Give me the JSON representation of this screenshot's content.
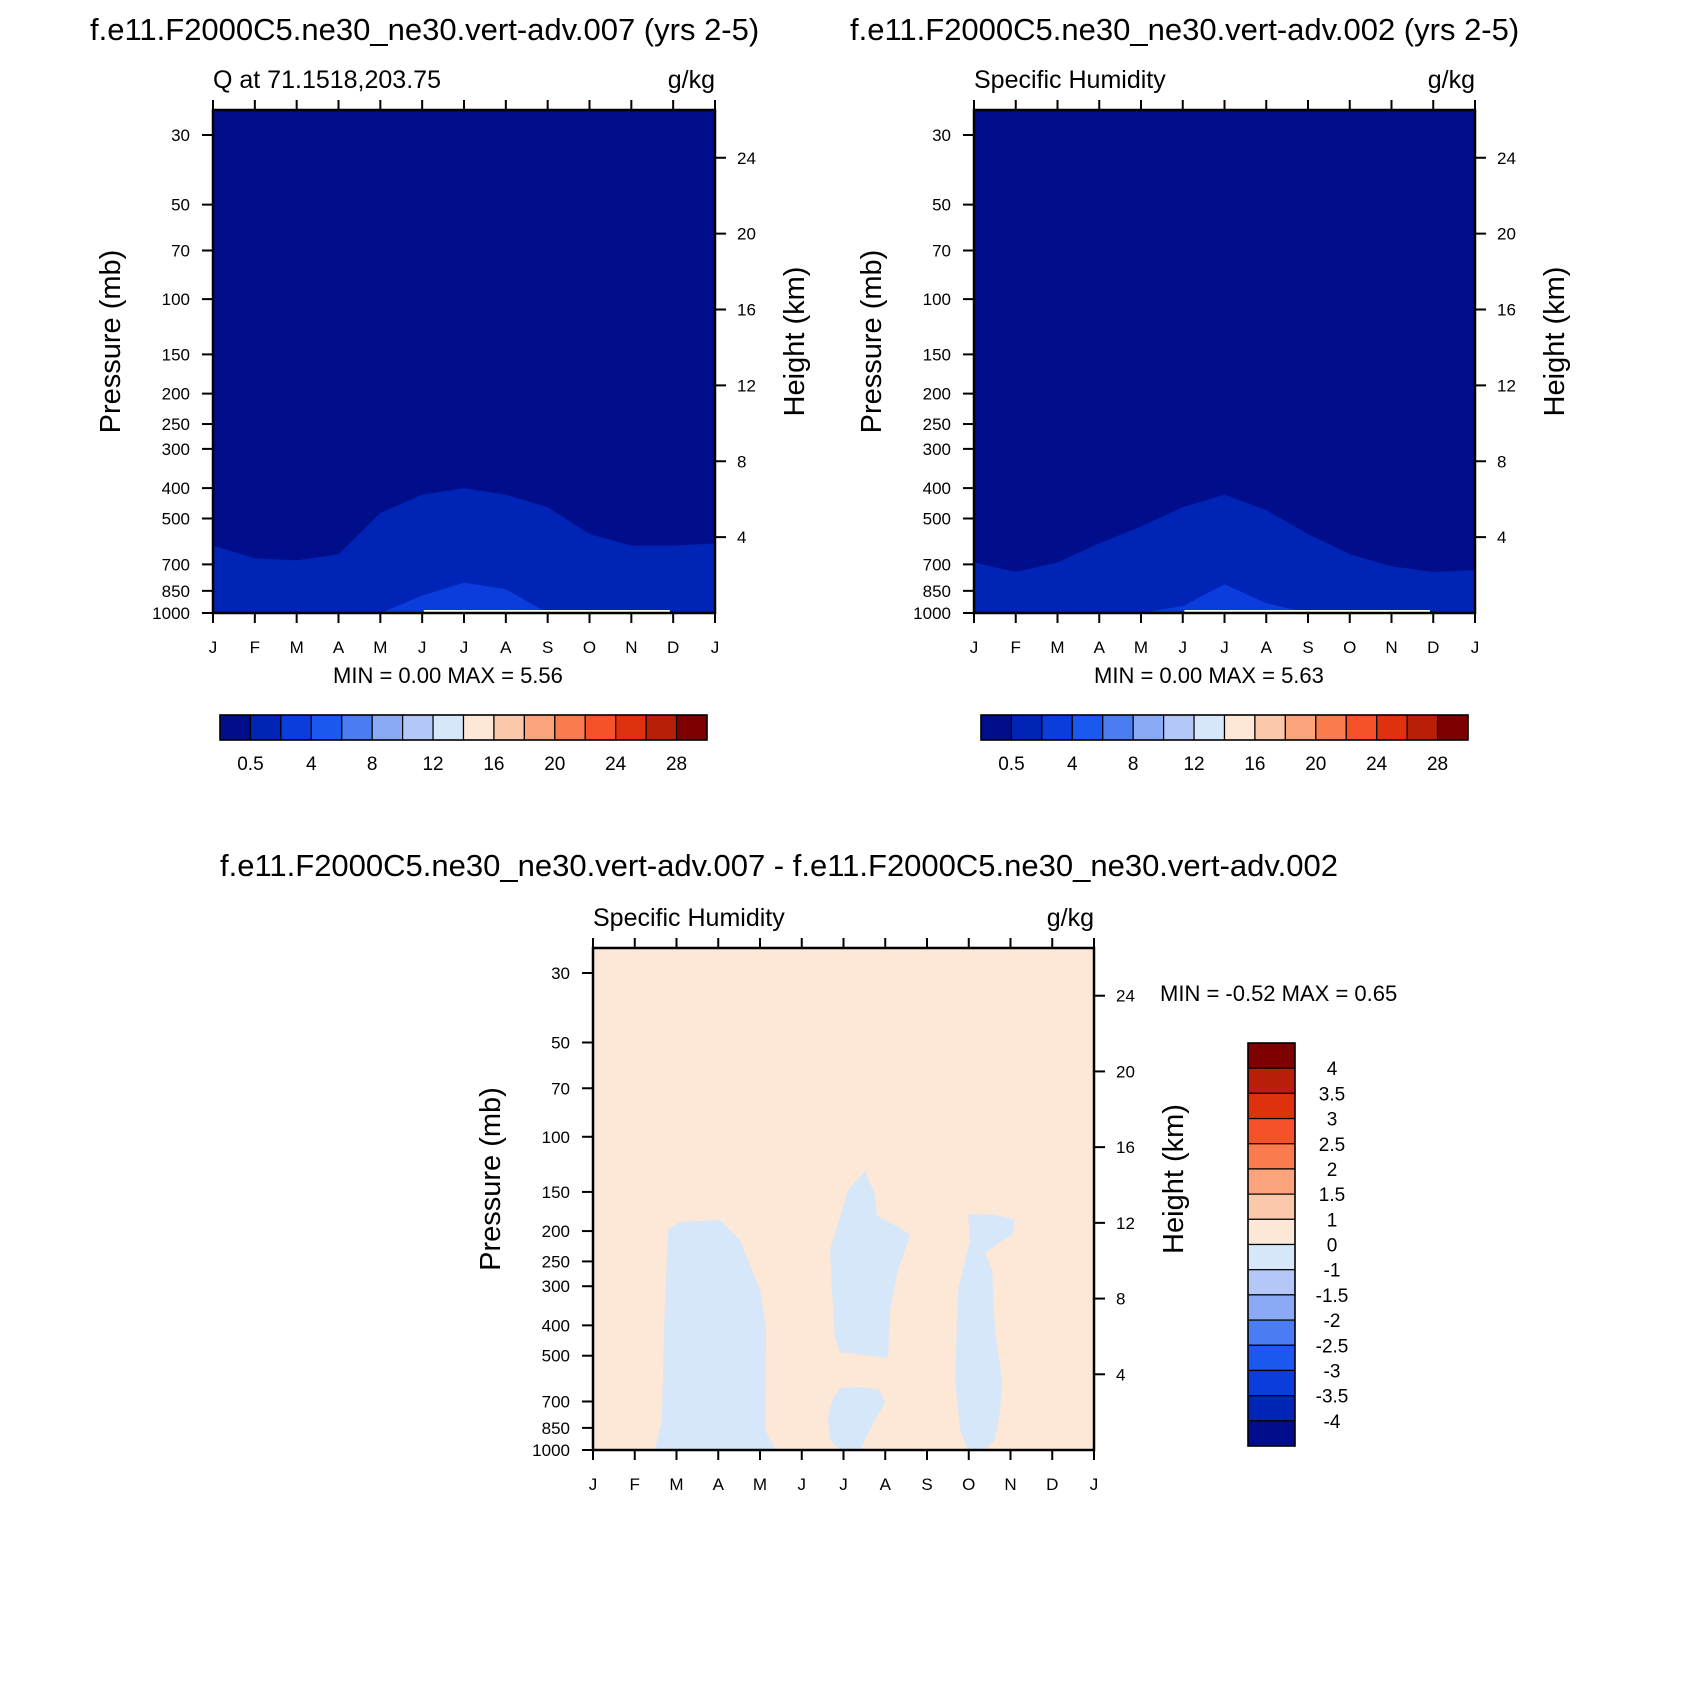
{
  "chart_data": [
    {
      "type": "heatmap",
      "title": "f.e11.F2000C5.ne30_ne30.vert-adv.007 (yrs 2-5)",
      "left_label": "Q at 71.1518,203.75",
      "units": "g/kg",
      "ylabel": "Pressure (mb)",
      "y2label": "Height (km)",
      "x_ticks": [
        "J",
        "F",
        "M",
        "A",
        "M",
        "J",
        "J",
        "A",
        "S",
        "O",
        "N",
        "D",
        "J"
      ],
      "y_ticks": [
        30,
        50,
        70,
        100,
        150,
        200,
        250,
        300,
        400,
        500,
        700,
        850,
        1000
      ],
      "y2_ticks": [
        24,
        20,
        16,
        12,
        8,
        4
      ],
      "stats": "MIN =   0.00 MAX =   5.56",
      "colorbar_labels": [
        "0.5",
        "4",
        "8",
        "12",
        "16",
        "20",
        "24",
        "28"
      ],
      "colorbar_colors": [
        "#000e8c",
        "#0024b5",
        "#0a3ddb",
        "#1a58f0",
        "#4a7cf4",
        "#8aaaf5",
        "#b4c8f7",
        "#d6e7fa",
        "#fde7d6",
        "#fcc8ac",
        "#fba47b",
        "#f97b4e",
        "#f5522a",
        "#e0310f",
        "#b81e08",
        "#7f0000"
      ],
      "contour_levels": [
        0.5,
        1,
        2,
        3
      ],
      "contour_fills": [
        "#000e8c",
        "#0024b5",
        "#0a3ddb",
        "#1a58f0"
      ],
      "bands": [
        {
          "level": 0.5,
          "top": [
            610,
            670,
            680,
            650,
            480,
            420,
            400,
            420,
            460,
            560,
            610,
            610,
            600
          ]
        },
        {
          "level": 1,
          "top": [
            1001,
            1001,
            1001,
            1001,
            900,
            690,
            620,
            650,
            720,
            1001,
            1001,
            1001,
            1001
          ]
        },
        {
          "level": 2,
          "top": [
            1001,
            1001,
            1001,
            1001,
            1001,
            880,
            800,
            840,
            1001,
            1001,
            1001,
            1001,
            1001
          ]
        },
        {
          "level": 3,
          "top": [
            1001,
            1001,
            1001,
            1001,
            1001,
            1001,
            990,
            1001,
            1001,
            1001,
            1001,
            1001,
            1001
          ]
        }
      ]
    },
    {
      "type": "heatmap",
      "title": "f.e11.F2000C5.ne30_ne30.vert-adv.002 (yrs 2-5)",
      "left_label": "Specific Humidity",
      "units": "g/kg",
      "ylabel": "Pressure (mb)",
      "y2label": "Height (km)",
      "x_ticks": [
        "J",
        "F",
        "M",
        "A",
        "M",
        "J",
        "J",
        "A",
        "S",
        "O",
        "N",
        "D",
        "J"
      ],
      "y_ticks": [
        30,
        50,
        70,
        100,
        150,
        200,
        250,
        300,
        400,
        500,
        700,
        850,
        1000
      ],
      "y2_ticks": [
        24,
        20,
        16,
        12,
        8,
        4
      ],
      "stats": "MIN =   0.00 MAX =   5.63",
      "colorbar_labels": [
        "0.5",
        "4",
        "8",
        "12",
        "16",
        "20",
        "24",
        "28"
      ],
      "colorbar_colors": [
        "#000e8c",
        "#0024b5",
        "#0a3ddb",
        "#1a58f0",
        "#4a7cf4",
        "#8aaaf5",
        "#b4c8f7",
        "#d6e7fa",
        "#fde7d6",
        "#fcc8ac",
        "#fba47b",
        "#f97b4e",
        "#f5522a",
        "#e0310f",
        "#b81e08",
        "#7f0000"
      ],
      "contour_levels": [
        0.5,
        1,
        2,
        3
      ],
      "contour_fills": [
        "#000e8c",
        "#0024b5",
        "#0a3ddb",
        "#1a58f0"
      ],
      "bands": [
        {
          "level": 0.5,
          "top": [
            690,
            740,
            690,
            600,
            530,
            460,
            420,
            470,
            560,
            650,
            710,
            740,
            730
          ]
        },
        {
          "level": 1,
          "top": [
            1001,
            1001,
            1001,
            1001,
            920,
            730,
            630,
            680,
            850,
            1001,
            1001,
            1001,
            1001
          ]
        },
        {
          "level": 2,
          "top": [
            1001,
            1001,
            1001,
            1001,
            1001,
            950,
            810,
            930,
            1001,
            1001,
            1001,
            1001,
            1001
          ]
        },
        {
          "level": 3,
          "top": [
            1001,
            1001,
            1001,
            1001,
            1001,
            1001,
            1001,
            1001,
            1001,
            1001,
            1001,
            1001,
            1001
          ]
        }
      ]
    },
    {
      "type": "heatmap",
      "title": "f.e11.F2000C5.ne30_ne30.vert-adv.007 - f.e11.F2000C5.ne30_ne30.vert-adv.002",
      "left_label": "Specific Humidity",
      "units": "g/kg",
      "ylabel": "Pressure (mb)",
      "y2label": "Height (km)",
      "x_ticks": [
        "J",
        "F",
        "M",
        "A",
        "M",
        "J",
        "J",
        "A",
        "S",
        "O",
        "N",
        "D",
        "J"
      ],
      "y_ticks": [
        30,
        50,
        70,
        100,
        150,
        200,
        250,
        300,
        400,
        500,
        700,
        850,
        1000
      ],
      "y2_ticks": [
        24,
        20,
        16,
        12,
        8,
        4
      ],
      "stats": "MIN =  -0.52 MAX =   0.65",
      "colorbar_labels": [
        "4",
        "3.5",
        "3",
        "2.5",
        "2",
        "1.5",
        "1",
        "0",
        "-1",
        "-1.5",
        "-2",
        "-2.5",
        "-3",
        "-3.5",
        "-4"
      ],
      "colorbar_colors": [
        "#7f0000",
        "#b81e08",
        "#e0310f",
        "#f5522a",
        "#f97b4e",
        "#fba47b",
        "#fcc8ac",
        "#fde7d6",
        "#d6e7fa",
        "#b4c8f7",
        "#8aaaf5",
        "#4a7cf4",
        "#1a58f0",
        "#0a3ddb",
        "#0024b5",
        "#000e8c"
      ],
      "background_fill": "#fde7d6",
      "negative_fill": "#d6e7fa"
    }
  ]
}
